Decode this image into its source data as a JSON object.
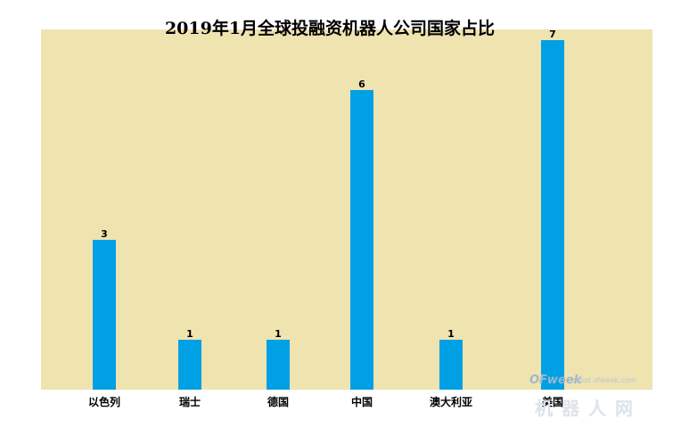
{
  "chart_data": {
    "type": "bar",
    "title": "2019年1月全球投融资机器人公司国家占比",
    "categories": [
      "以色列",
      "瑞士",
      "德国",
      "中国",
      "澳大利亚",
      "美国"
    ],
    "values": [
      3,
      1,
      1,
      6,
      1,
      7
    ],
    "ylim": [
      0,
      7
    ],
    "xlabel": "",
    "ylabel": "",
    "grid": false,
    "legend": "none",
    "colors": {
      "plot_background": "#efe3b0",
      "bar": "#00a0e4"
    }
  },
  "watermark": {
    "brand": "OFweek",
    "site": "robot.ofweek.com",
    "name": "机器人网"
  }
}
